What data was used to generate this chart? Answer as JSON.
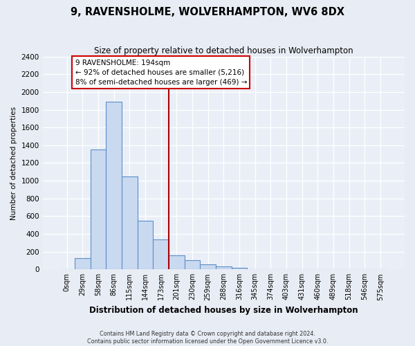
{
  "title": "9, RAVENSHOLME, WOLVERHAMPTON, WV6 8DX",
  "subtitle": "Size of property relative to detached houses in Wolverhampton",
  "xlabel": "Distribution of detached houses by size in Wolverhampton",
  "ylabel": "Number of detached properties",
  "bar_labels": [
    "0sqm",
    "29sqm",
    "58sqm",
    "86sqm",
    "115sqm",
    "144sqm",
    "173sqm",
    "201sqm",
    "230sqm",
    "259sqm",
    "288sqm",
    "316sqm",
    "345sqm",
    "374sqm",
    "403sqm",
    "431sqm",
    "460sqm",
    "489sqm",
    "518sqm",
    "546sqm",
    "575sqm"
  ],
  "bar_values": [
    0,
    125,
    1350,
    1890,
    1050,
    550,
    340,
    160,
    105,
    60,
    30,
    15,
    5,
    3,
    2,
    1,
    1,
    0,
    0,
    0,
    5
  ],
  "bar_color": "#c9d9f0",
  "bar_edge_color": "#5b8ec9",
  "vline_x_index": 7,
  "vline_color": "#aa0000",
  "annotation_title": "9 RAVENSHOLME: 194sqm",
  "annotation_line1": "← 92% of detached houses are smaller (5,216)",
  "annotation_line2": "8% of semi-detached houses are larger (469) →",
  "annotation_box_facecolor": "#ffffff",
  "annotation_box_edgecolor": "#cc0000",
  "ylim": [
    0,
    2400
  ],
  "yticks": [
    0,
    200,
    400,
    600,
    800,
    1000,
    1200,
    1400,
    1600,
    1800,
    2000,
    2200,
    2400
  ],
  "footer1": "Contains HM Land Registry data © Crown copyright and database right 2024.",
  "footer2": "Contains public sector information licensed under the Open Government Licence v3.0.",
  "fig_bg_color": "#e8ecf4",
  "plot_bg_color": "#eaeff7"
}
